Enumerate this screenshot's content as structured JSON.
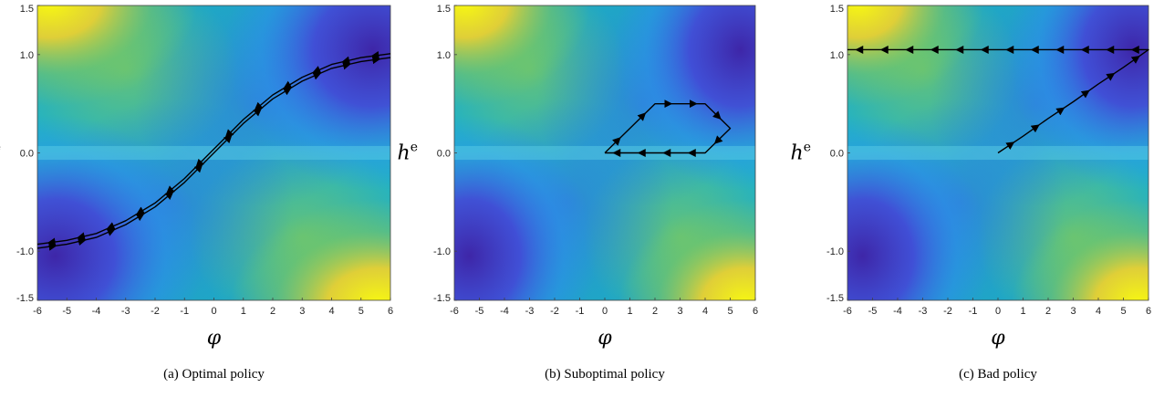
{
  "chart_data": [
    {
      "type": "line",
      "subtype": "trajectory-over-heatmap",
      "caption": "(a) Optimal policy",
      "xlabel": "φ",
      "ylabel": "h",
      "ylabel_sup": "e",
      "xlim": [
        -6,
        6
      ],
      "ylim": [
        -1.5,
        1.5
      ],
      "xticks": [
        "-6",
        "-5",
        "-4",
        "-3",
        "-2",
        "-1",
        "0",
        "1",
        "2",
        "3",
        "4",
        "5",
        "6"
      ],
      "yticks": [
        {
          "value": 1.5,
          "label": "1.5"
        },
        {
          "value": 1.0,
          "label": "1.0"
        },
        {
          "value": 0.0,
          "label": "0.0"
        },
        {
          "value": -1.0,
          "label": "-1.0"
        },
        {
          "value": -1.5,
          "label": "-1.5"
        }
      ],
      "grid": false,
      "colormap": "parula",
      "highlight_band": [
        -0.07,
        0.07
      ],
      "series": [
        {
          "x": [
            -6,
            -5,
            -4,
            -3,
            -2,
            -1,
            0,
            1,
            2,
            3,
            4,
            5,
            6
          ],
          "y": [
            -0.97,
            -0.93,
            -0.86,
            -0.73,
            -0.55,
            -0.3,
            0.0,
            0.3,
            0.55,
            0.73,
            0.86,
            0.93,
            0.97
          ],
          "direction": "forward"
        },
        {
          "x": [
            6,
            5,
            4,
            3,
            2,
            1,
            0,
            -1,
            -2,
            -3,
            -4,
            -5,
            -6
          ],
          "y": [
            1.01,
            0.97,
            0.9,
            0.77,
            0.59,
            0.34,
            0.04,
            -0.26,
            -0.51,
            -0.69,
            -0.82,
            -0.89,
            -0.93
          ],
          "direction": "backward"
        }
      ]
    },
    {
      "type": "line",
      "subtype": "trajectory-over-heatmap",
      "caption": "(b) Suboptimal policy",
      "xlabel": "φ",
      "ylabel": "h",
      "ylabel_sup": "e",
      "xlim": [
        -6,
        6
      ],
      "ylim": [
        -1.5,
        1.5
      ],
      "xticks": [
        "-6",
        "-5",
        "-4",
        "-3",
        "-2",
        "-1",
        "0",
        "1",
        "2",
        "3",
        "4",
        "5",
        "6"
      ],
      "yticks": [
        {
          "value": 1.5,
          "label": "1.5"
        },
        {
          "value": 1.0,
          "label": "1.0"
        },
        {
          "value": 0.0,
          "label": "0.0"
        },
        {
          "value": -1.0,
          "label": "-1.0"
        },
        {
          "value": -1.5,
          "label": "-1.5"
        }
      ],
      "grid": false,
      "colormap": "parula",
      "highlight_band": [
        -0.07,
        0.07
      ],
      "series": [
        {
          "x": [
            0,
            1,
            2,
            3,
            4,
            5,
            4,
            3,
            2,
            1,
            0
          ],
          "y": [
            0,
            0.25,
            0.5,
            0.5,
            0.5,
            0.25,
            0,
            0,
            0,
            0,
            0
          ],
          "direction": "forward"
        }
      ]
    },
    {
      "type": "line",
      "subtype": "trajectory-over-heatmap",
      "caption": "(c) Bad policy",
      "xlabel": "φ",
      "ylabel": "h",
      "ylabel_sup": "e",
      "xlim": [
        -6,
        6
      ],
      "ylim": [
        -1.5,
        1.5
      ],
      "xticks": [
        "-6",
        "-5",
        "-4",
        "-3",
        "-2",
        "-1",
        "0",
        "1",
        "2",
        "3",
        "4",
        "5",
        "6"
      ],
      "yticks": [
        {
          "value": 1.5,
          "label": "1.5"
        },
        {
          "value": 1.0,
          "label": "1.0"
        },
        {
          "value": 0.0,
          "label": "0.0"
        },
        {
          "value": -1.0,
          "label": "-1.0"
        },
        {
          "value": -1.5,
          "label": "-1.5"
        }
      ],
      "grid": false,
      "colormap": "parula",
      "highlight_band": [
        -0.07,
        0.07
      ],
      "series": [
        {
          "x": [
            0,
            1,
            2,
            3,
            4,
            5,
            6,
            5,
            4,
            3,
            2,
            1,
            0,
            -1,
            -2,
            -3,
            -4,
            -5,
            -6
          ],
          "y": [
            0,
            0.17,
            0.35,
            0.52,
            0.7,
            0.87,
            1.05,
            1.05,
            1.05,
            1.05,
            1.05,
            1.05,
            1.05,
            1.05,
            1.05,
            1.05,
            1.05,
            1.05,
            1.05
          ],
          "direction": "forward"
        }
      ]
    }
  ],
  "colors": {
    "parula_dark": "#3e26a8",
    "parula_blue": "#2e87f8",
    "parula_teal": "#17bbb4",
    "parula_green": "#80cb58",
    "parula_yellow": "#f9fb0e",
    "trajectory": "#000000"
  }
}
